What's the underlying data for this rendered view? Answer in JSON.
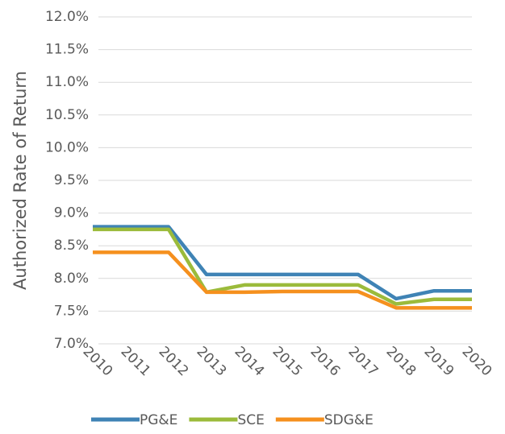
{
  "chart_data": {
    "type": "line",
    "y_label": "Authorized Rate of Return",
    "categories": [
      "2010",
      "2011",
      "2012",
      "2013",
      "2014",
      "2015",
      "2016",
      "2017",
      "2018",
      "2019",
      "2020"
    ],
    "series": [
      {
        "name": "PG&E",
        "color": "#3f83b5",
        "values": [
          8.79,
          8.79,
          8.79,
          8.06,
          8.06,
          8.06,
          8.06,
          8.06,
          7.69,
          7.81,
          7.81
        ]
      },
      {
        "name": "SCE",
        "color": "#9bbb3b",
        "values": [
          8.75,
          8.75,
          8.75,
          7.79,
          7.9,
          7.9,
          7.9,
          7.9,
          7.61,
          7.68,
          7.68
        ]
      },
      {
        "name": "SDG&E",
        "color": "#f5901e",
        "values": [
          8.4,
          8.4,
          8.4,
          7.79,
          7.79,
          7.8,
          7.8,
          7.8,
          7.55,
          7.55,
          7.55
        ]
      }
    ],
    "ylim": [
      7,
      12
    ],
    "yticks": [
      {
        "value": 7,
        "label": "7.0%"
      },
      {
        "value": 7.5,
        "label": "7.5%"
      },
      {
        "value": 8,
        "label": "8.0%"
      },
      {
        "value": 8.5,
        "label": "8.5%"
      },
      {
        "value": 9,
        "label": "9.0%"
      },
      {
        "value": 9.5,
        "label": "9.5%"
      },
      {
        "value": 10,
        "label": "10.0%"
      },
      {
        "value": 10.5,
        "label": "10.5%"
      },
      {
        "value": 11,
        "label": "11.0%"
      },
      {
        "value": 11.5,
        "label": "11.5%"
      },
      {
        "value": 12,
        "label": "12.0%"
      }
    ],
    "grid": true,
    "legend": "bottom"
  }
}
